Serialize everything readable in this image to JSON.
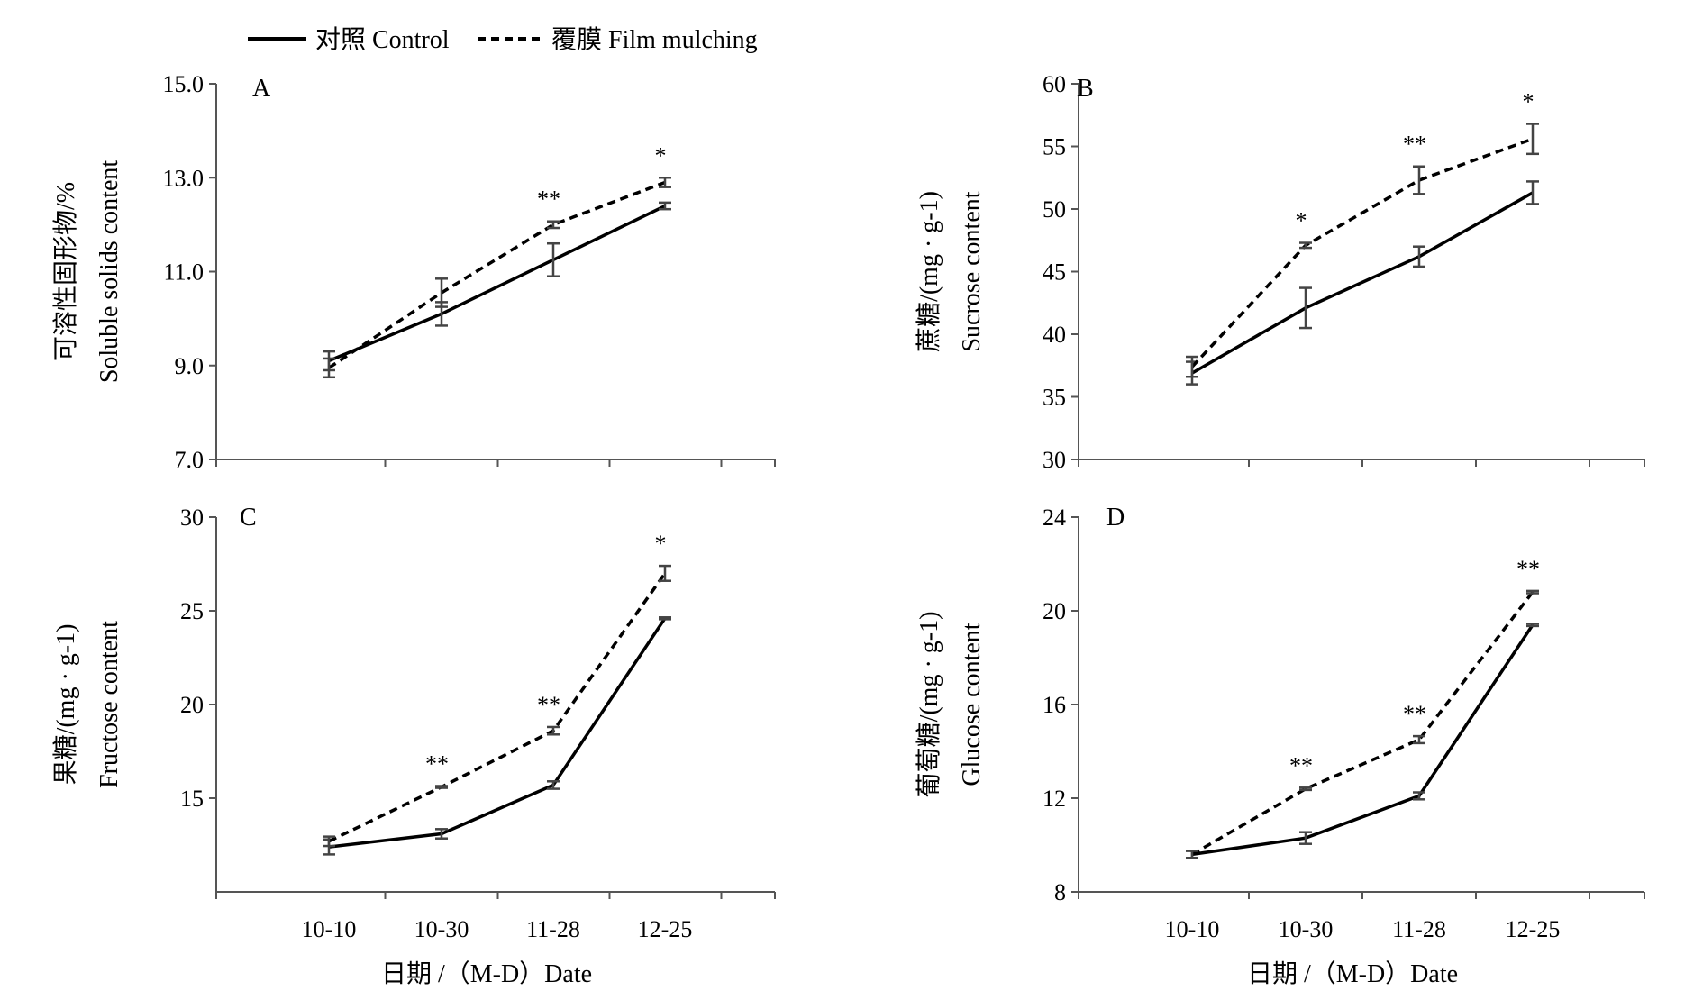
{
  "legend": {
    "control": "对照 Control",
    "film": "覆膜 Film mulching"
  },
  "colors": {
    "line": "#000000",
    "axis": "#555555",
    "error": "#444444"
  },
  "chart_data": [
    {
      "type": "line",
      "panel": "A",
      "ylabel_cn": "可溶性固形物/%",
      "ylabel_en": "Soluble solids content",
      "xlabel": "",
      "ylim": [
        7.0,
        15.0
      ],
      "yticks": [
        "7.0",
        "9.0",
        "11.0",
        "13.0",
        "15.0"
      ],
      "ytick_values": [
        7,
        9,
        11,
        13,
        15
      ],
      "categories": [
        "10-10",
        "10-30",
        "11-28",
        "12-25"
      ],
      "series": [
        {
          "name": "对照 Control",
          "style": "solid",
          "values": [
            9.1,
            10.1,
            11.25,
            12.4
          ],
          "errors": [
            0.2,
            0.25,
            0.35,
            0.07
          ]
        },
        {
          "name": "覆膜 Film mulching",
          "style": "dashed",
          "values": [
            8.95,
            10.55,
            12.0,
            12.9
          ],
          "errors": [
            0.2,
            0.3,
            0.07,
            0.1
          ]
        }
      ],
      "significance": [
        "",
        "",
        "**",
        "*"
      ]
    },
    {
      "type": "line",
      "panel": "B",
      "ylabel_cn": "蔗糖/(mg · g-1)",
      "ylabel_en": "Sucrose content",
      "xlabel": "",
      "ylim": [
        30,
        60
      ],
      "yticks": [
        "30",
        "35",
        "40",
        "45",
        "50",
        "55",
        "60"
      ],
      "ytick_values": [
        30,
        35,
        40,
        45,
        50,
        55,
        60
      ],
      "categories": [
        "10-10",
        "10-30",
        "11-28",
        "12-25"
      ],
      "series": [
        {
          "name": "对照 Control",
          "style": "solid",
          "values": [
            36.9,
            42.1,
            46.2,
            51.3
          ],
          "errors": [
            0.9,
            1.6,
            0.8,
            0.9
          ]
        },
        {
          "name": "覆膜 Film mulching",
          "style": "dashed",
          "values": [
            37.4,
            47.1,
            52.3,
            55.6
          ],
          "errors": [
            0.8,
            0.2,
            1.1,
            1.2
          ]
        }
      ],
      "significance": [
        "",
        "*",
        "**",
        "*"
      ]
    },
    {
      "type": "line",
      "panel": "C",
      "ylabel_cn": "果糖/(mg · g-1)",
      "ylabel_en": "Fructose content",
      "xlabel": "日期 /（M-D）Date",
      "ylim": [
        10,
        30
      ],
      "yticks": [
        "15",
        "20",
        "25",
        "30"
      ],
      "ytick_values": [
        15,
        20,
        25,
        30
      ],
      "categories": [
        "10-10",
        "10-30",
        "11-28",
        "12-25"
      ],
      "series": [
        {
          "name": "对照 Control",
          "style": "solid",
          "values": [
            12.4,
            13.1,
            15.7,
            24.6
          ],
          "errors": [
            0.4,
            0.25,
            0.2,
            0.05
          ]
        },
        {
          "name": "覆膜 Film mulching",
          "style": "dashed",
          "values": [
            12.7,
            15.6,
            18.6,
            27.0
          ],
          "errors": [
            0.25,
            0.05,
            0.2,
            0.4
          ]
        }
      ],
      "significance": [
        "",
        "**",
        "**",
        "*"
      ]
    },
    {
      "type": "line",
      "panel": "D",
      "ylabel_cn": "葡萄糖/(mg · g-1)",
      "ylabel_en": "Glucose content",
      "xlabel": "日期 /（M-D）Date",
      "ylim": [
        8,
        24
      ],
      "yticks": [
        "8",
        "12",
        "16",
        "20",
        "24"
      ],
      "ytick_values": [
        8,
        12,
        16,
        20,
        24
      ],
      "categories": [
        "10-10",
        "10-30",
        "11-28",
        "12-25"
      ],
      "series": [
        {
          "name": "对照 Control",
          "style": "solid",
          "values": [
            9.6,
            10.3,
            12.1,
            19.4
          ],
          "errors": [
            0.15,
            0.25,
            0.15,
            0.05
          ]
        },
        {
          "name": "覆膜 Film mulching",
          "style": "dashed",
          "values": [
            9.6,
            12.4,
            14.5,
            20.8
          ],
          "errors": [
            0.15,
            0.05,
            0.15,
            0.05
          ]
        }
      ],
      "significance": [
        "",
        "**",
        "**",
        "**"
      ]
    }
  ]
}
